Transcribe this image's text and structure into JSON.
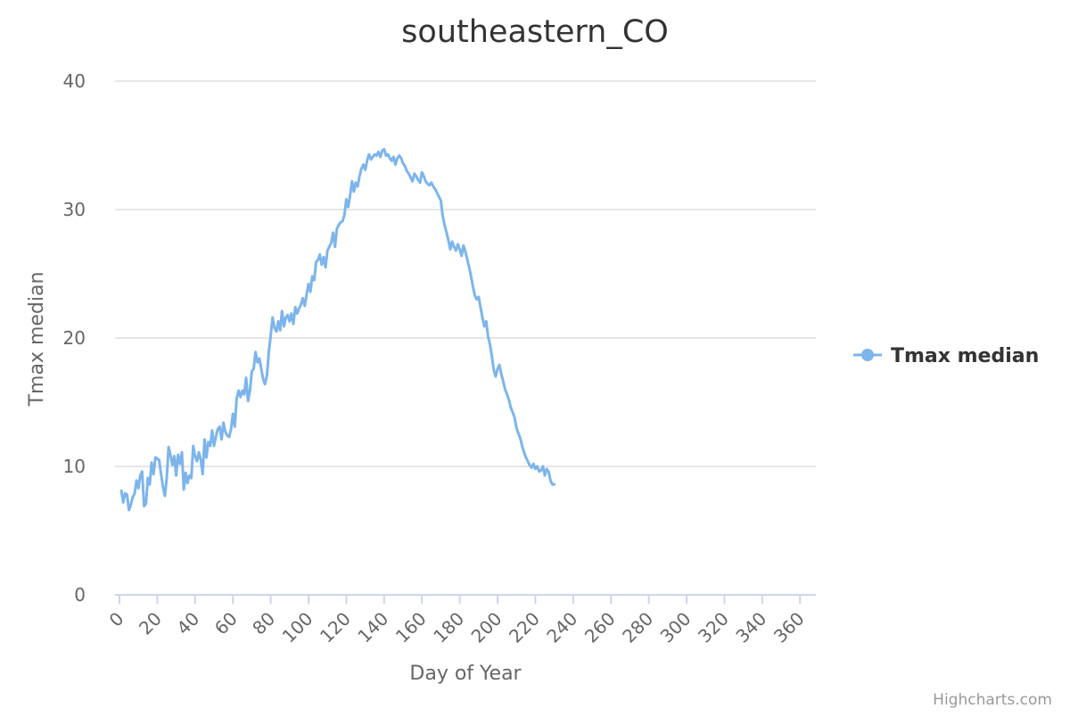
{
  "chart_data": {
    "type": "line",
    "title": "southeastern_CO",
    "xlabel": "Day of Year",
    "ylabel": "Tmax median",
    "xlim": [
      0,
      365
    ],
    "ylim": [
      0,
      40
    ],
    "x_ticks": [
      0,
      20,
      40,
      60,
      80,
      100,
      120,
      140,
      160,
      180,
      200,
      220,
      240,
      260,
      280,
      300,
      320,
      340,
      360
    ],
    "y_ticks": [
      0,
      10,
      20,
      30,
      40
    ],
    "grid": "horizontal",
    "legend": "right",
    "color": "#7cb5ec",
    "series": [
      {
        "name": "Tmax median",
        "x_start": 1,
        "values": [
          8.1,
          7.2,
          7.9,
          7.8,
          6.6,
          7.0,
          7.6,
          7.9,
          8.9,
          8.3,
          9.3,
          9.6,
          6.9,
          7.1,
          9.1,
          8.6,
          10.3,
          9.4,
          10.7,
          10.6,
          10.5,
          9.4,
          8.4,
          7.7,
          9.1,
          11.5,
          10.9,
          10.1,
          10.8,
          9.3,
          10.9,
          10.2,
          11.1,
          8.2,
          9.5,
          8.7,
          9.3,
          9.1,
          11.6,
          10.8,
          10.4,
          11.1,
          10.5,
          9.4,
          12.1,
          10.7,
          11.9,
          11.6,
          12.8,
          11.6,
          12.3,
          12.9,
          13.1,
          12.1,
          13.4,
          12.7,
          12.4,
          12.3,
          12.9,
          14.1,
          13.1,
          15.3,
          15.9,
          15.4,
          15.9,
          15.6,
          16.9,
          15.1,
          15.9,
          17.4,
          17.6,
          18.9,
          18.1,
          18.4,
          17.6,
          16.8,
          16.4,
          17.1,
          18.9,
          20.2,
          21.6,
          20.8,
          20.5,
          21.3,
          20.6,
          22.1,
          20.9,
          21.6,
          21.8,
          21.3,
          21.9,
          21.1,
          22.4,
          21.9,
          22.3,
          22.6,
          23.1,
          22.5,
          23.4,
          24.2,
          23.6,
          24.8,
          24.5,
          25.9,
          26.1,
          26.5,
          25.7,
          26.3,
          25.5,
          26.8,
          27.1,
          27.4,
          28.2,
          27.1,
          28.5,
          28.8,
          29.0,
          29.1,
          29.6,
          30.8,
          30.2,
          31.1,
          32.2,
          31.4,
          32.1,
          31.8,
          32.6,
          33.2,
          33.5,
          33.1,
          33.8,
          34.3,
          33.9,
          34.1,
          34.3,
          34.2,
          34.5,
          34.1,
          34.6,
          34.7,
          34.2,
          34.3,
          34.0,
          33.8,
          34.1,
          33.5,
          34.0,
          34.2,
          34.0,
          33.6,
          33.4,
          33.0,
          32.8,
          32.5,
          32.2,
          32.8,
          32.6,
          32.3,
          32.1,
          32.9,
          32.6,
          32.2,
          32.0,
          31.9,
          32.1,
          31.8,
          31.6,
          31.3,
          31.0,
          30.7,
          29.5,
          28.8,
          28.2,
          27.6,
          26.9,
          27.5,
          27.1,
          26.8,
          27.3,
          26.9,
          26.4,
          27.2,
          26.7,
          26.1,
          25.5,
          24.8,
          24.0,
          23.3,
          23.0,
          23.2,
          22.4,
          21.6,
          20.9,
          21.3,
          20.1,
          19.5,
          18.6,
          17.5,
          17.0,
          17.6,
          17.9,
          17.2,
          16.6,
          16.0,
          15.6,
          15.2,
          14.6,
          14.2,
          13.8,
          13.0,
          12.6,
          12.2,
          11.6,
          11.1,
          10.7,
          10.4,
          10.1,
          9.9,
          10.2,
          9.8,
          10.0,
          9.6,
          9.7,
          10.0,
          9.3,
          9.8,
          9.6,
          8.9,
          8.6,
          8.6
        ]
      }
    ]
  },
  "credits": "Highcharts.com"
}
